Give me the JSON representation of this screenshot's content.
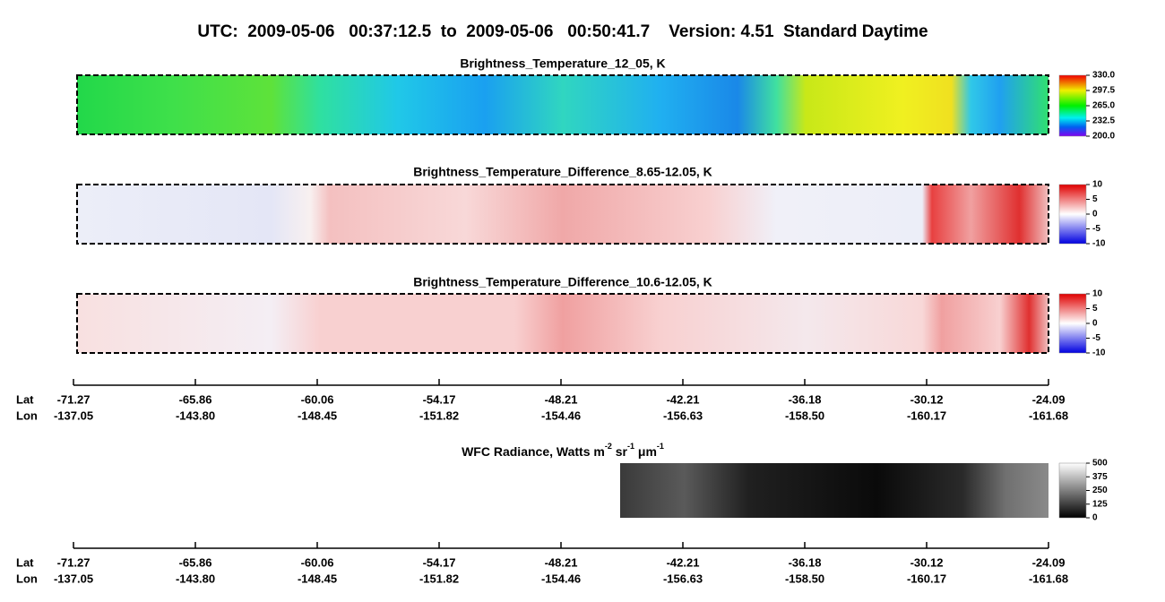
{
  "title": "UTC:  2009-05-06   00:37:12.5  to  2009-05-06   00:50:41.7    Version: 4.51  Standard Daytime",
  "panels": [
    {
      "title": "Brightness_Temperature_12_05, K",
      "clim": [
        200,
        330
      ],
      "cticks": [
        {
          "value": 330,
          "label": "330.0"
        },
        297.5,
        {
          "value": 265,
          "label": "265.0"
        },
        232.5,
        {
          "value": 200,
          "label": "200.0"
        }
      ]
    },
    {
      "title": "Brightness_Temperature_Difference_8.65-12.05, K",
      "clim": [
        -10,
        10
      ],
      "cticks": [
        10,
        5,
        0,
        -5,
        -10
      ]
    },
    {
      "title": "Brightness_Temperature_Difference_10.6-12.05, K",
      "clim": [
        -10,
        10
      ],
      "cticks": [
        10,
        5,
        0,
        -5,
        -10
      ]
    },
    {
      "title_parts": [
        "WFC Radiance, Watts m",
        "-2",
        " sr",
        "-1",
        " μm",
        "-1"
      ],
      "clim": [
        0,
        500
      ],
      "cticks": [
        500,
        375,
        250,
        125,
        0
      ]
    }
  ],
  "axes": [
    {
      "lat_label": "Lat",
      "lon_label": "Lon",
      "lat": [
        -71.27,
        -65.86,
        -60.06,
        -54.17,
        -48.21,
        -42.21,
        -36.18,
        -30.12,
        -24.09
      ],
      "lon": [
        -137.05,
        {
          "value": -143.8,
          "label": "-143.80"
        },
        -148.45,
        -151.82,
        -154.46,
        -156.63,
        {
          "value": -158.5,
          "label": "-158.50"
        },
        -160.17,
        -161.68
      ]
    },
    {
      "lat_label": "Lat",
      "lon_label": "Lon",
      "lat": [
        -71.27,
        -65.86,
        -60.06,
        -54.17,
        -48.21,
        -42.21,
        -36.18,
        -30.12,
        -24.09
      ],
      "lon": [
        -137.05,
        {
          "value": -143.8,
          "label": "-143.80"
        },
        -148.45,
        -151.82,
        -154.46,
        -156.63,
        {
          "value": -158.5,
          "label": "-158.50"
        },
        -160.17,
        -161.68
      ]
    }
  ]
}
